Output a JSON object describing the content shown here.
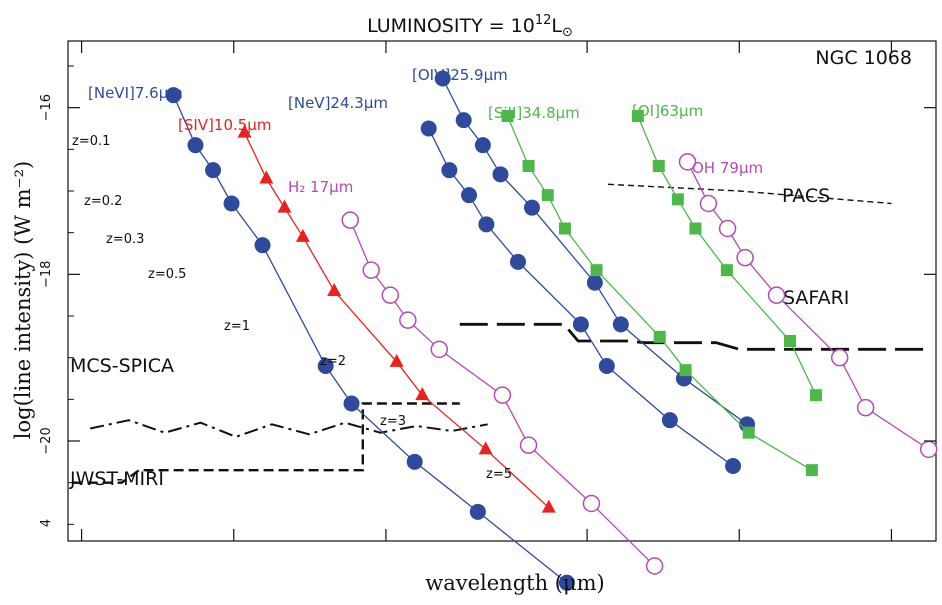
{
  "chart_data": {
    "type": "line",
    "title": "LUMINOSITY = 10",
    "title_sup": "12",
    "title_tail": "L",
    "xlabel": "wavelength (μm)",
    "ylabel": "log(line intensity) (W m⁻²)",
    "ylim": [
      -21.2,
      -15.2
    ],
    "xlim": [
      4.7,
      245
    ],
    "x_scale": "log",
    "grid": false,
    "y_ticks": [
      -16,
      -18,
      -20
    ],
    "y_tick_labels": [
      "−16",
      "−18",
      "−20"
    ],
    "y_bottom_label": "4",
    "x_tick_marks": [
      5,
      10,
      20,
      50,
      100,
      200
    ],
    "corner_label": "NGC 1068",
    "colors": {
      "blue": "#2e4a9c",
      "red": "#e8231f",
      "green": "#4db84a",
      "magenta": "#b24bb5",
      "black": "#111111"
    },
    "series": [
      {
        "name": "[NeVI]7.6μm",
        "color": "#2e4a9c",
        "marker": "circle-filled",
        "x": [
          7.6,
          8.4,
          9.1,
          9.9,
          11.4,
          15.2,
          17.1,
          22.8,
          30.4,
          45.6
        ],
        "y": [
          -15.85,
          -16.45,
          -16.75,
          -17.15,
          -17.65,
          -19.1,
          -19.55,
          -20.25,
          -20.85,
          -21.7
        ]
      },
      {
        "name": "[SIV]10.5μm",
        "color": "#e8231f",
        "marker": "triangle-filled",
        "x": [
          10.5,
          11.6,
          12.6,
          13.7,
          15.8,
          21.0,
          23.6,
          31.5,
          42.0
        ],
        "y": [
          -16.3,
          -16.85,
          -17.2,
          -17.55,
          -18.2,
          -19.05,
          -19.45,
          -20.1,
          -20.8
        ]
      },
      {
        "name": "H₂ 17μm",
        "color": "#b24bb5",
        "marker": "circle-open",
        "x": [
          17.0,
          18.7,
          20.4,
          22.1,
          25.5,
          34.0,
          38.3,
          51.0,
          68.0
        ],
        "y": [
          -17.35,
          -17.95,
          -18.25,
          -18.55,
          -18.9,
          -19.45,
          -20.05,
          -20.75,
          -21.5
        ]
      },
      {
        "name": "[NeV]24.3μm",
        "color": "#2e4a9c",
        "marker": "circle-filled",
        "x": [
          24.3,
          26.7,
          29.2,
          31.6,
          36.5,
          48.6,
          54.7,
          72.9,
          97.2
        ],
        "y": [
          -16.25,
          -16.75,
          -17.05,
          -17.4,
          -17.85,
          -18.6,
          -19.1,
          -19.75,
          -20.3
        ]
      },
      {
        "name": "[OIV]25.9μm",
        "color": "#2e4a9c",
        "marker": "circle-filled",
        "x": [
          25.9,
          28.5,
          31.1,
          33.7,
          38.9,
          51.8,
          58.3,
          77.7,
          103.6
        ],
        "y": [
          -15.65,
          -16.15,
          -16.45,
          -16.8,
          -17.2,
          -18.1,
          -18.6,
          -19.25,
          -19.8
        ]
      },
      {
        "name": "[SiII]34.8μm",
        "color": "#4db84a",
        "marker": "square-filled",
        "x": [
          34.8,
          38.3,
          41.8,
          45.2,
          52.2,
          69.6,
          78.3,
          104.4,
          139.2
        ],
        "y": [
          -16.1,
          -16.7,
          -17.05,
          -17.45,
          -17.95,
          -18.75,
          -19.15,
          -19.9,
          -20.35
        ]
      },
      {
        "name": "[OI]63μm",
        "color": "#4db84a",
        "marker": "square-filled",
        "x": [
          63,
          69.3,
          75.6,
          81.9,
          94.5,
          126,
          141.8
        ],
        "y": [
          -16.1,
          -16.7,
          -17.1,
          -17.45,
          -17.95,
          -18.8,
          -19.45
        ]
      },
      {
        "name": "OH 79μm",
        "color": "#b24bb5",
        "marker": "circle-open",
        "x": [
          79,
          86.9,
          94.8,
          102.7,
          118.5,
          158,
          177.8,
          237
        ],
        "y": [
          -16.65,
          -17.15,
          -17.45,
          -17.8,
          -18.25,
          -19.0,
          -19.6,
          -20.1
        ]
      }
    ],
    "sensitivity_curves": [
      {
        "name": "MCS-SPICA",
        "style": "dash-dot",
        "color": "#111111",
        "x": [
          5.2,
          6.2,
          7.3,
          8.6,
          10.1,
          11.9,
          14.1,
          16.6,
          19.5,
          23,
          27,
          31.8
        ],
        "y": [
          -19.85,
          -19.75,
          -19.9,
          -19.78,
          -19.95,
          -19.8,
          -19.92,
          -19.78,
          -19.9,
          -19.82,
          -19.88,
          -19.8
        ]
      },
      {
        "name": "JWST-MIRI",
        "style": "dashed",
        "color": "#111111",
        "x": [
          4.8,
          6.0,
          6.5,
          18.0,
          18.0,
          28.0
        ],
        "y": [
          -20.5,
          -20.5,
          -20.35,
          -20.35,
          -19.55,
          -19.55
        ]
      },
      {
        "name": "SAFARI",
        "style": "long-dashed",
        "color": "#111111",
        "x": [
          28,
          45,
          48,
          60,
          65,
          90,
          100,
          240
        ],
        "y": [
          -18.6,
          -18.6,
          -18.8,
          -18.8,
          -18.82,
          -18.82,
          -18.9,
          -18.9
        ]
      },
      {
        "name": "PACS",
        "style": "short-dashed",
        "color": "#111111",
        "x": [
          55,
          100,
          200
        ],
        "y": [
          -16.92,
          -17.0,
          -17.15
        ]
      }
    ],
    "z_labels": [
      "z=0.1",
      "z=0.2",
      "z=0.3",
      "z=0.5",
      "z=1",
      "z=2",
      "z=3",
      "z=5"
    ]
  }
}
